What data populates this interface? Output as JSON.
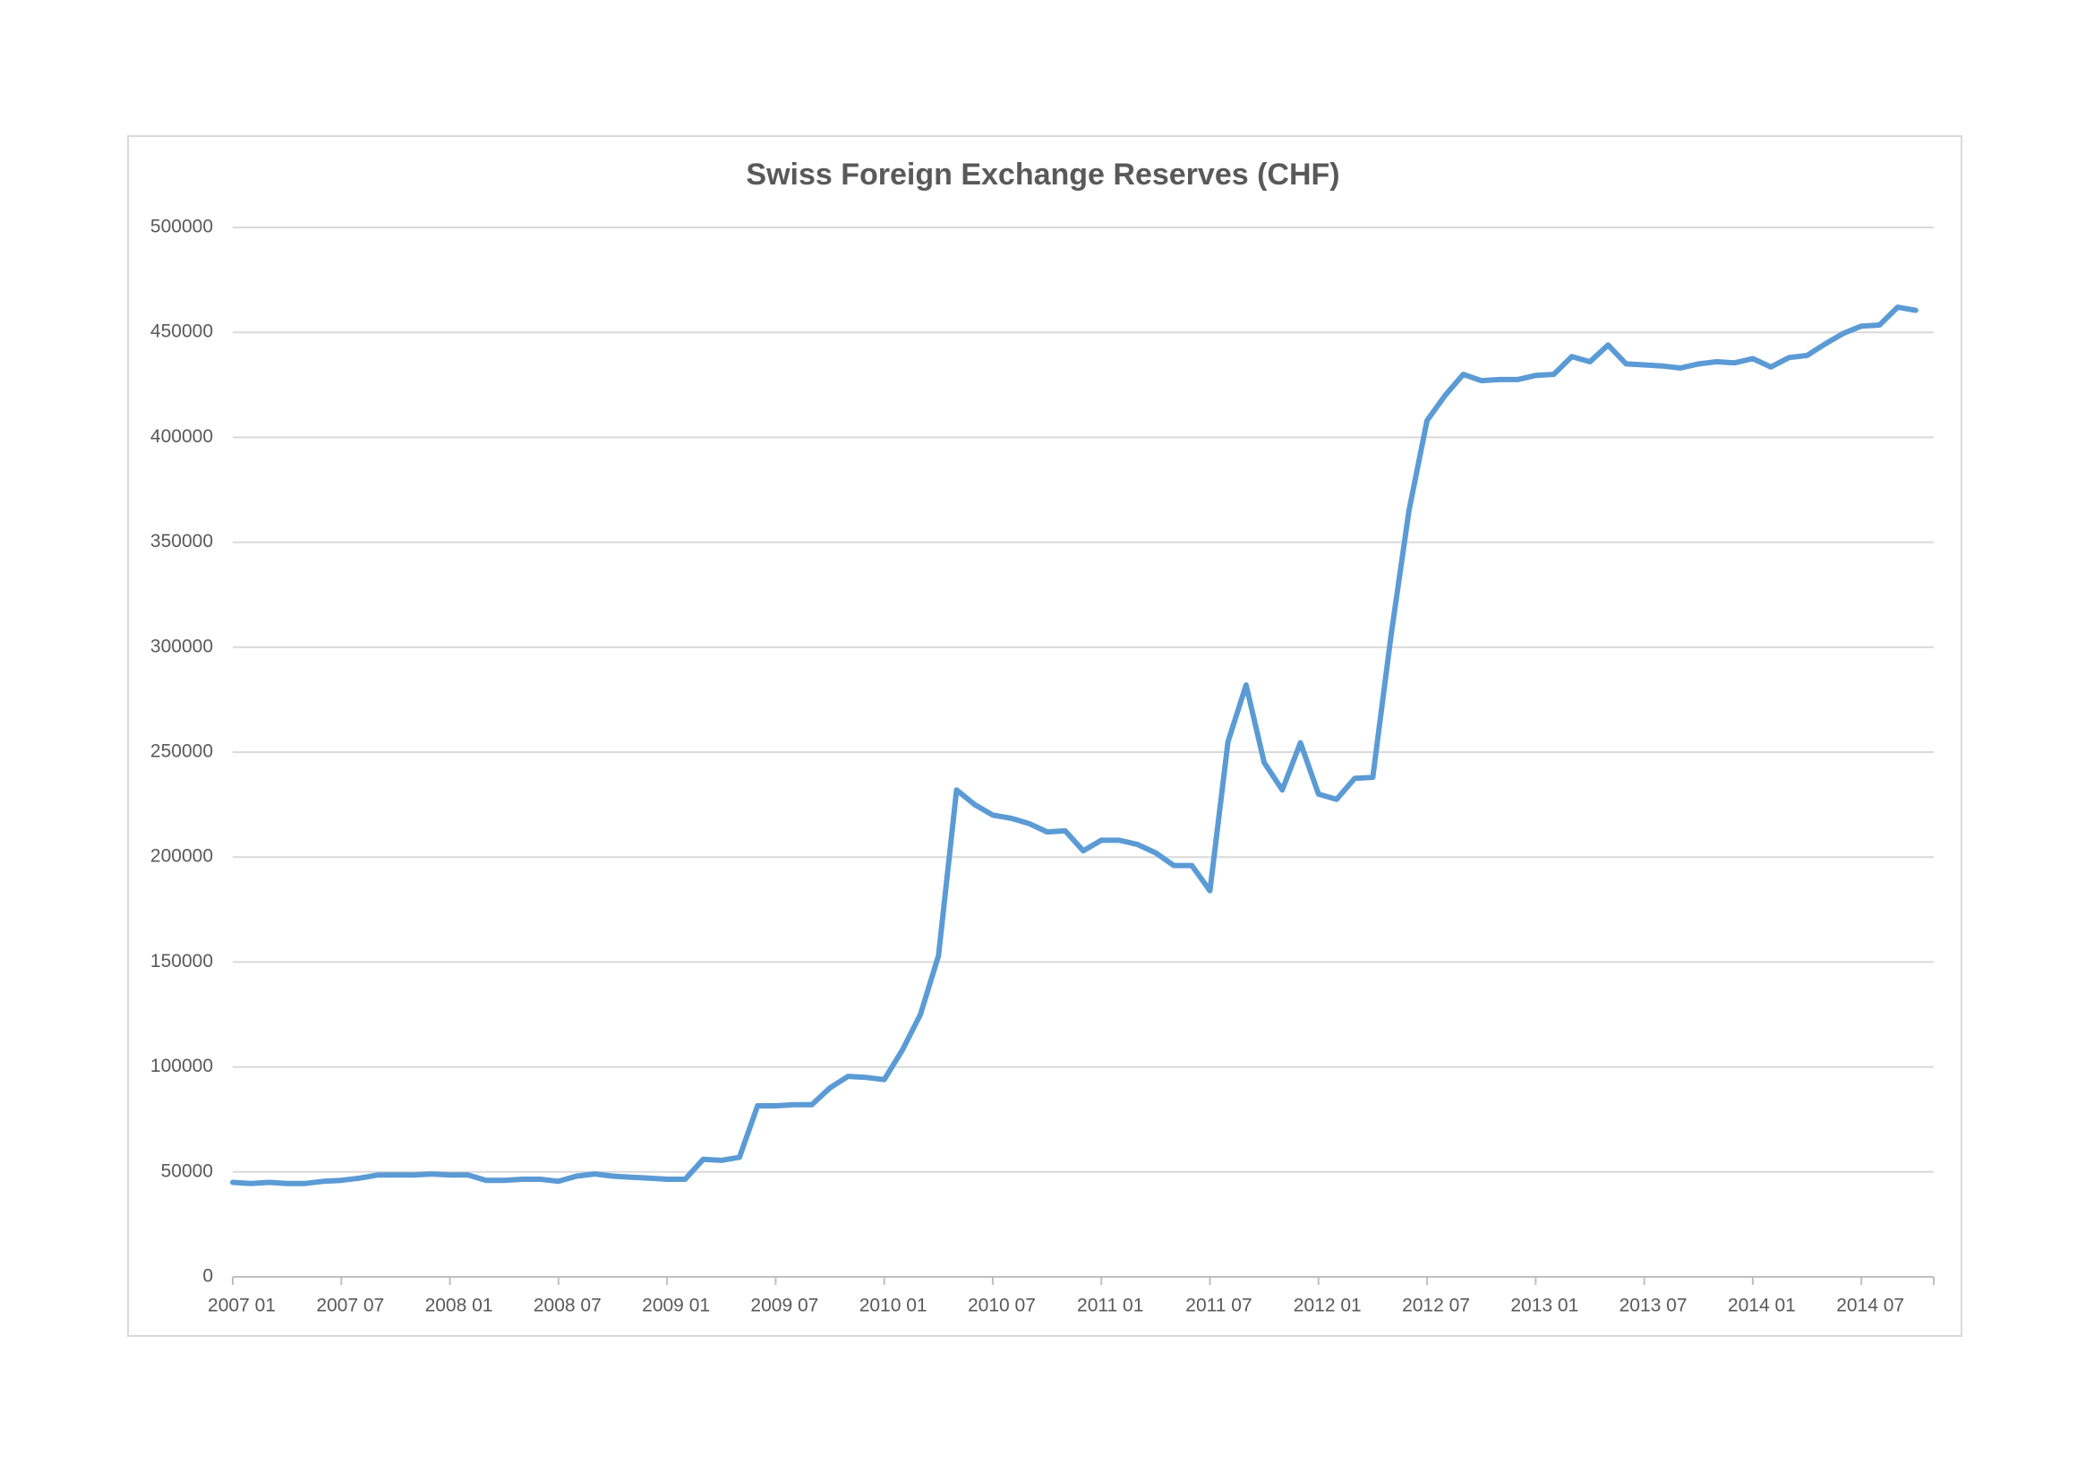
{
  "chart_data": {
    "type": "line",
    "title": "Swiss Foreign Exchange Reserves (CHF)",
    "categories": [
      "2007 01",
      null,
      null,
      null,
      null,
      null,
      "2007 07",
      null,
      null,
      null,
      null,
      null,
      "2008 01",
      null,
      null,
      null,
      null,
      null,
      "2008 07",
      null,
      null,
      null,
      null,
      null,
      "2009 01",
      null,
      null,
      null,
      null,
      null,
      "2009 07",
      null,
      null,
      null,
      null,
      null,
      "2010 01",
      null,
      null,
      null,
      null,
      null,
      "2010 07",
      null,
      null,
      null,
      null,
      null,
      "2011 01",
      null,
      null,
      null,
      null,
      null,
      "2011 07",
      null,
      null,
      null,
      null,
      null,
      "2012 01",
      null,
      null,
      null,
      null,
      null,
      "2012 07",
      null,
      null,
      null,
      null,
      null,
      "2013 01",
      null,
      null,
      null,
      null,
      null,
      "2013 07",
      null,
      null,
      null,
      null,
      null,
      "2014 01",
      null,
      null,
      null,
      null,
      null,
      "2014 07",
      null,
      null,
      null
    ],
    "series": [
      {
        "color": "#5b9bd5",
        "values": [
          45000,
          44500,
          45000,
          44500,
          44500,
          45500,
          46000,
          47000,
          48500,
          48500,
          48500,
          49000,
          48500,
          48500,
          46000,
          46000,
          46500,
          46500,
          45500,
          48000,
          49000,
          48000,
          47500,
          47000,
          46500,
          46500,
          56000,
          55500,
          57000,
          81500,
          81500,
          82000,
          82000,
          90000,
          95500,
          95000,
          94000,
          108000,
          125000,
          153000,
          232000,
          225000,
          220000,
          218500,
          216000,
          212000,
          212500,
          203000,
          208000,
          208000,
          206000,
          202000,
          196000,
          196000,
          184000,
          255000,
          282000,
          245000,
          232000,
          254500,
          230000,
          227500,
          237500,
          238000,
          305000,
          365000,
          408000,
          420000,
          430000,
          427000,
          427500,
          427500,
          429500,
          430000,
          438500,
          436000,
          444000,
          435000,
          434500,
          434000,
          433000,
          435000,
          436000,
          435500,
          437500,
          433500,
          438000,
          439000,
          444500,
          449500,
          453000,
          453500,
          462000,
          460500
        ]
      }
    ],
    "ylim": [
      0,
      500000
    ],
    "yticks": [
      0,
      50000,
      100000,
      150000,
      200000,
      250000,
      300000,
      350000,
      400000,
      450000,
      500000
    ],
    "grid": true
  }
}
